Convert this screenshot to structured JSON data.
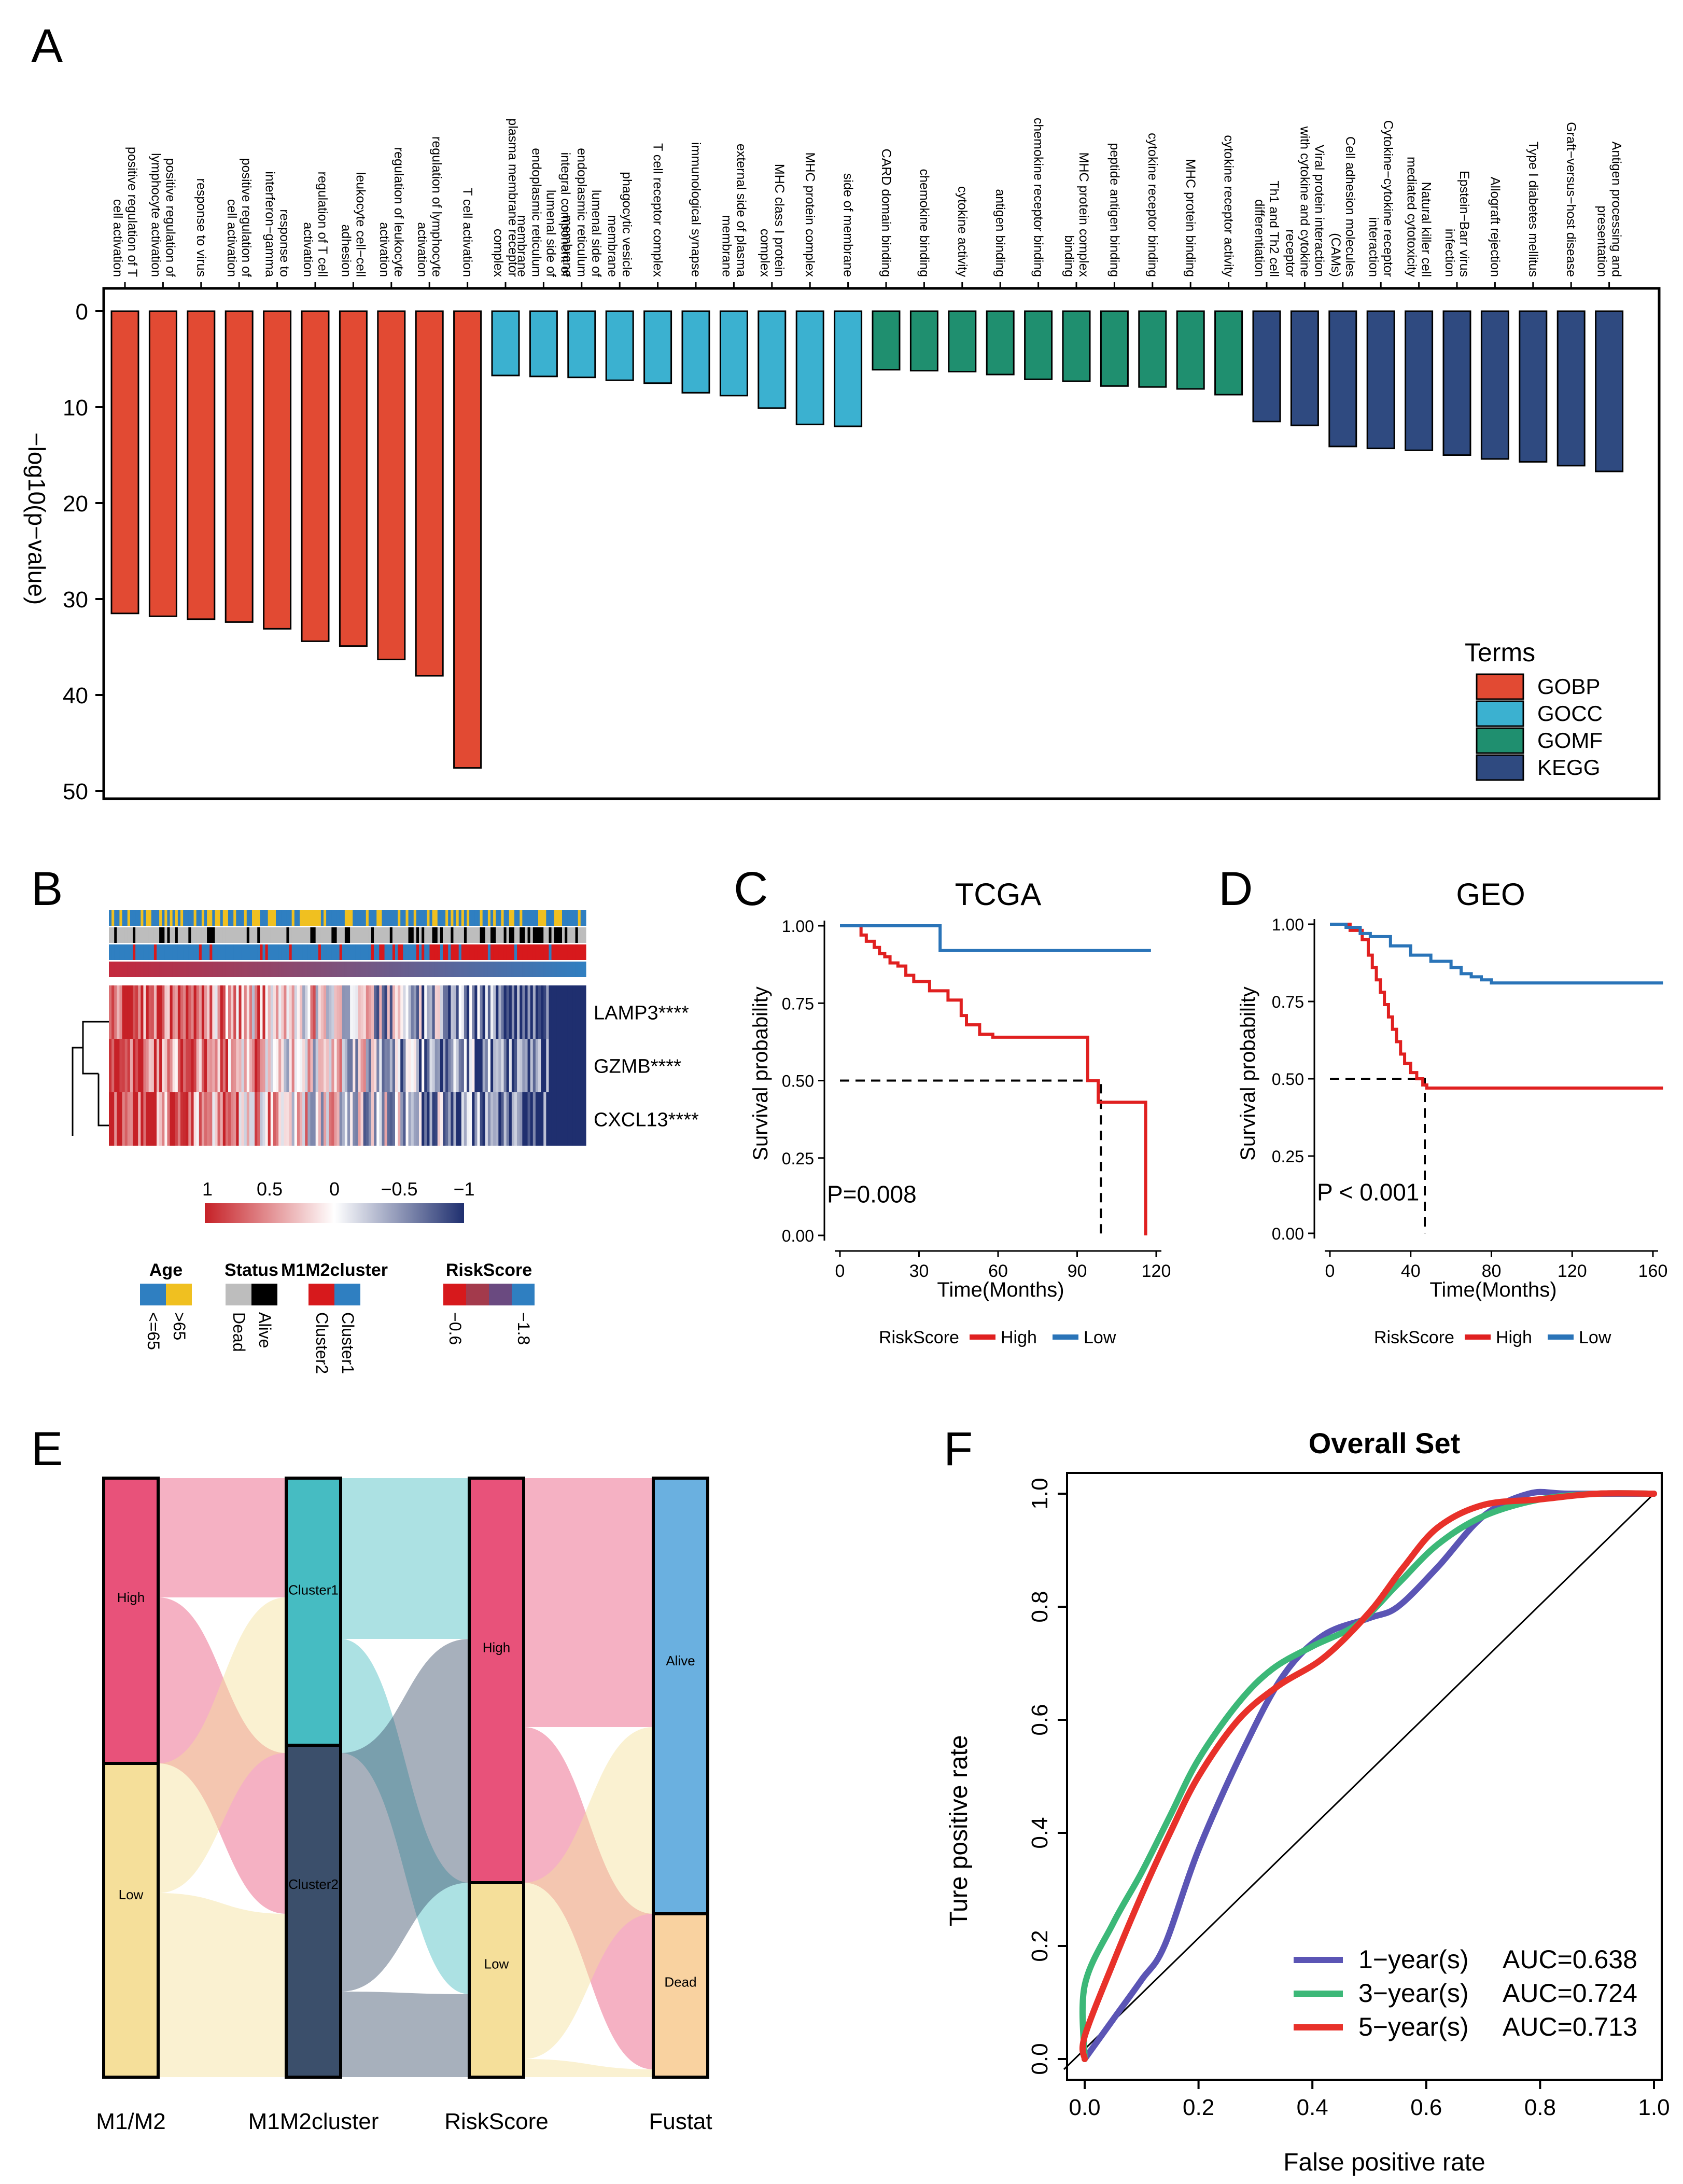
{
  "chart_data": [
    {
      "panel": "A",
      "type": "bar",
      "orientation": "downward",
      "ylabel": "−log10(p−value)",
      "ylim": [
        0,
        50
      ],
      "yticks": [
        "0",
        "10",
        "20",
        "30",
        "40",
        "50"
      ],
      "categories": [
        "positive regulation of T cell activation",
        "positive regulation of lymphocyte activation",
        "response to virus",
        "positive regulation of cell activation",
        "response to interferon−gamma",
        "regulation of T cell activation",
        "leukocyte cell−cell adhesion",
        "regulation of leukocyte activation",
        "regulation of lymphocyte activation",
        "T cell activation",
        "plasma membrane receptor complex",
        "integral component of lumenal side of endoplasmic reticulum membrane",
        "lumenal side of endoplasmic reticulum membrane",
        "phagocytic vesicle membrane",
        "T cell receptor complex",
        "immunological synapse",
        "external side of plasma membrane",
        "MHC class I protein complex",
        "MHC protein complex",
        "side of membrane",
        "CARD domain binding",
        "chemokine binding",
        "cytokine activity",
        "antigen binding",
        "chemokine receptor binding",
        "MHC protein complex binding",
        "peptide antigen binding",
        "cytokine receptor binding",
        "MHC protein binding",
        "cytokine receptor activity",
        "Th1 and Th2 cell differentiation",
        "Viral protein interaction with cytokine and cytokine receptor",
        "Cell adhesion molecules (CAMs)",
        "Cytokine−cytokine receptor interaction",
        "Natural killer cell mediated cytotoxicity",
        "Epstein−Barr virus infection",
        "Allograft rejection",
        "Type I diabetes mellitus",
        "Graft−versus−host disease",
        "Antigen processing and presentation"
      ],
      "values": [
        31.5,
        31.8,
        32.1,
        32.4,
        33.1,
        34.4,
        34.9,
        36.3,
        38.0,
        47.6,
        6.7,
        6.8,
        6.9,
        7.2,
        7.5,
        8.5,
        8.8,
        10.1,
        11.8,
        12.0,
        6.1,
        6.2,
        6.3,
        6.6,
        7.1,
        7.3,
        7.8,
        7.9,
        8.1,
        8.7,
        11.5,
        11.9,
        14.1,
        14.3,
        14.5,
        15.0,
        15.4,
        15.7,
        16.1,
        16.7
      ],
      "groups": [
        "GOBP",
        "GOBP",
        "GOBP",
        "GOBP",
        "GOBP",
        "GOBP",
        "GOBP",
        "GOBP",
        "GOBP",
        "GOBP",
        "GOCC",
        "GOCC",
        "GOCC",
        "GOCC",
        "GOCC",
        "GOCC",
        "GOCC",
        "GOCC",
        "GOCC",
        "GOCC",
        "GOMF",
        "GOMF",
        "GOMF",
        "GOMF",
        "GOMF",
        "GOMF",
        "GOMF",
        "GOMF",
        "GOMF",
        "GOMF",
        "KEGG",
        "KEGG",
        "KEGG",
        "KEGG",
        "KEGG",
        "KEGG",
        "KEGG",
        "KEGG",
        "KEGG",
        "KEGG"
      ],
      "legend": {
        "title": "Terms",
        "entries": [
          {
            "label": "GOBP",
            "color": "#e24a33"
          },
          {
            "label": "GOCC",
            "color": "#3bb1d0"
          },
          {
            "label": "GOMF",
            "color": "#1f8f6f"
          },
          {
            "label": "KEGG",
            "color": "#2f4a80"
          }
        ],
        "placement": "bottom-right"
      }
    },
    {
      "panel": "B",
      "type": "heatmap",
      "rows": [
        "LAMP3****",
        "GZMB****",
        "CXCL13****"
      ],
      "color_scale": {
        "ticks": [
          "1",
          "0.5",
          "0",
          "−0.5",
          "−1"
        ],
        "high": "#c62127",
        "mid": "#ffffff",
        "low": "#1f2f6f"
      },
      "annotation_legends": [
        {
          "title": "Age",
          "levels": [
            "<=65",
            ">65"
          ],
          "colors": [
            "#2f7fc1",
            "#f0c020"
          ]
        },
        {
          "title": "Status",
          "levels": [
            "Dead",
            "Alive"
          ],
          "colors": [
            "#bdbdbd",
            "#000000"
          ]
        },
        {
          "title": "M1M2cluster",
          "levels": [
            "Cluster2",
            "Cluster1"
          ],
          "colors": [
            "#d7191c",
            "#2f7fc1"
          ]
        },
        {
          "title": "RiskScore",
          "levels": [
            "−0.6",
            "−1.8"
          ],
          "colors": [
            "#d7191c",
            "#a33a4c",
            "#6a4a80",
            "#2f7fc1"
          ]
        }
      ]
    },
    {
      "panel": "C",
      "type": "line",
      "title": "TCGA",
      "xlabel": "Time(Months)",
      "ylabel": "Survival probability",
      "xlim": [
        0,
        120
      ],
      "ylim": [
        0,
        1
      ],
      "xticks": [
        "0",
        "30",
        "60",
        "90",
        "120"
      ],
      "yticks": [
        "0.00",
        "0.25",
        "0.50",
        "0.75",
        "1.00"
      ],
      "annotation": "P=0.008",
      "median_survival_months": 99,
      "series": [
        {
          "name": "High",
          "color": "#e02020",
          "x": [
            0,
            8,
            10,
            13,
            15,
            17,
            19,
            22,
            25,
            28,
            34,
            41,
            46,
            48,
            53,
            58,
            94,
            98,
            115,
            116
          ],
          "y": [
            1.0,
            0.97,
            0.95,
            0.93,
            0.91,
            0.9,
            0.88,
            0.87,
            0.84,
            0.82,
            0.79,
            0.76,
            0.71,
            0.68,
            0.65,
            0.64,
            0.5,
            0.43,
            0.43,
            0.0
          ]
        },
        {
          "name": "Low",
          "color": "#2a74b8",
          "x": [
            0,
            38,
            118
          ],
          "y": [
            1.0,
            0.92,
            0.92
          ]
        }
      ],
      "legend": {
        "title": "RiskScore",
        "entries": [
          "High",
          "Low"
        ],
        "placement": "bottom"
      }
    },
    {
      "panel": "D",
      "type": "line",
      "title": "GEO",
      "xlabel": "Time(Months)",
      "ylabel": "Survival probability",
      "xlim": [
        0,
        160
      ],
      "ylim": [
        0,
        1
      ],
      "xticks": [
        "0",
        "40",
        "80",
        "120",
        "160"
      ],
      "yticks": [
        "0.00",
        "0.25",
        "0.50",
        "0.75",
        "1.00"
      ],
      "annotation": "P < 0.001",
      "median_survival_months": 47,
      "series": [
        {
          "name": "High",
          "color": "#e02020",
          "x": [
            0,
            10,
            16,
            19,
            21,
            23,
            25,
            27,
            29,
            31,
            33,
            35,
            37,
            40,
            43,
            46,
            48,
            165
          ],
          "y": [
            1.0,
            0.98,
            0.95,
            0.9,
            0.86,
            0.82,
            0.78,
            0.74,
            0.7,
            0.66,
            0.62,
            0.58,
            0.55,
            0.52,
            0.5,
            0.48,
            0.47,
            0.47
          ]
        },
        {
          "name": "Low",
          "color": "#2a74b8",
          "x": [
            0,
            8,
            15,
            20,
            30,
            40,
            50,
            60,
            65,
            70,
            75,
            80,
            165
          ],
          "y": [
            1.0,
            0.99,
            0.97,
            0.96,
            0.93,
            0.9,
            0.88,
            0.86,
            0.84,
            0.83,
            0.82,
            0.81,
            0.81
          ]
        }
      ],
      "legend": {
        "title": "RiskScore",
        "entries": [
          "High",
          "Low"
        ],
        "placement": "bottom"
      }
    },
    {
      "panel": "E",
      "type": "sankey",
      "axes": [
        "M1/M2",
        "M1M2cluster",
        "RiskScore",
        "Fustat"
      ],
      "nodes": [
        {
          "axis": 0,
          "label": "High",
          "fraction": 0.48,
          "color": "#e8527a"
        },
        {
          "axis": 0,
          "label": "Low",
          "fraction": 0.52,
          "color": "#f5df9a"
        },
        {
          "axis": 1,
          "label": "Cluster1",
          "fraction": 0.45,
          "color": "#46bcc2"
        },
        {
          "axis": 1,
          "label": "Cluster2",
          "fraction": 0.55,
          "color": "#3b4f6b"
        },
        {
          "axis": 2,
          "label": "High",
          "fraction": 0.68,
          "color": "#e8527a"
        },
        {
          "axis": 2,
          "label": "Low",
          "fraction": 0.32,
          "color": "#f5df9a"
        },
        {
          "axis": 3,
          "label": "Alive",
          "fraction": 0.73,
          "color": "#6ab0e0"
        },
        {
          "axis": 3,
          "label": "Dead",
          "fraction": 0.27,
          "color": "#f9d2a0"
        }
      ]
    },
    {
      "panel": "F",
      "type": "line",
      "title": "Overall Set",
      "xlabel": "False positive rate",
      "ylabel": "Ture positive rate",
      "xlim": [
        0,
        1
      ],
      "ylim": [
        0,
        1
      ],
      "xticks": [
        "0.0",
        "0.2",
        "0.4",
        "0.6",
        "0.8",
        "1.0"
      ],
      "yticks": [
        "0.0",
        "0.2",
        "0.4",
        "0.6",
        "0.8",
        "1.0"
      ],
      "series": [
        {
          "name": "1−year(s)",
          "auc_label": "AUC=0.638",
          "color": "#5b55b5",
          "x": [
            0,
            0.05,
            0.1,
            0.14,
            0.2,
            0.28,
            0.35,
            0.42,
            0.5,
            0.55,
            0.62,
            0.7,
            0.78,
            0.85,
            1.0
          ],
          "y": [
            0,
            0.07,
            0.14,
            0.2,
            0.37,
            0.55,
            0.68,
            0.75,
            0.78,
            0.8,
            0.87,
            0.96,
            1.0,
            1.0,
            1.0
          ]
        },
        {
          "name": "3−year(s)",
          "auc_label": "AUC=0.724",
          "color": "#3cb878",
          "x": [
            0,
            0.0,
            0.05,
            0.1,
            0.15,
            0.2,
            0.27,
            0.33,
            0.4,
            0.48,
            0.55,
            0.62,
            0.7,
            0.8,
            0.9,
            1.0
          ],
          "y": [
            0,
            0.13,
            0.24,
            0.33,
            0.43,
            0.53,
            0.63,
            0.69,
            0.73,
            0.77,
            0.84,
            0.91,
            0.96,
            0.99,
            1.0,
            1.0
          ]
        },
        {
          "name": "5−year(s)",
          "auc_label": "AUC=0.713",
          "color": "#e8312a",
          "x": [
            0,
            0.0,
            0.05,
            0.1,
            0.15,
            0.2,
            0.27,
            0.34,
            0.42,
            0.5,
            0.56,
            0.62,
            0.7,
            0.8,
            0.9,
            1.0
          ],
          "y": [
            0,
            0.04,
            0.17,
            0.29,
            0.4,
            0.5,
            0.6,
            0.66,
            0.71,
            0.79,
            0.87,
            0.94,
            0.98,
            0.99,
            1.0,
            1.0
          ]
        }
      ],
      "reference_line": true,
      "legend": {
        "placement": "bottom-right"
      }
    }
  ]
}
